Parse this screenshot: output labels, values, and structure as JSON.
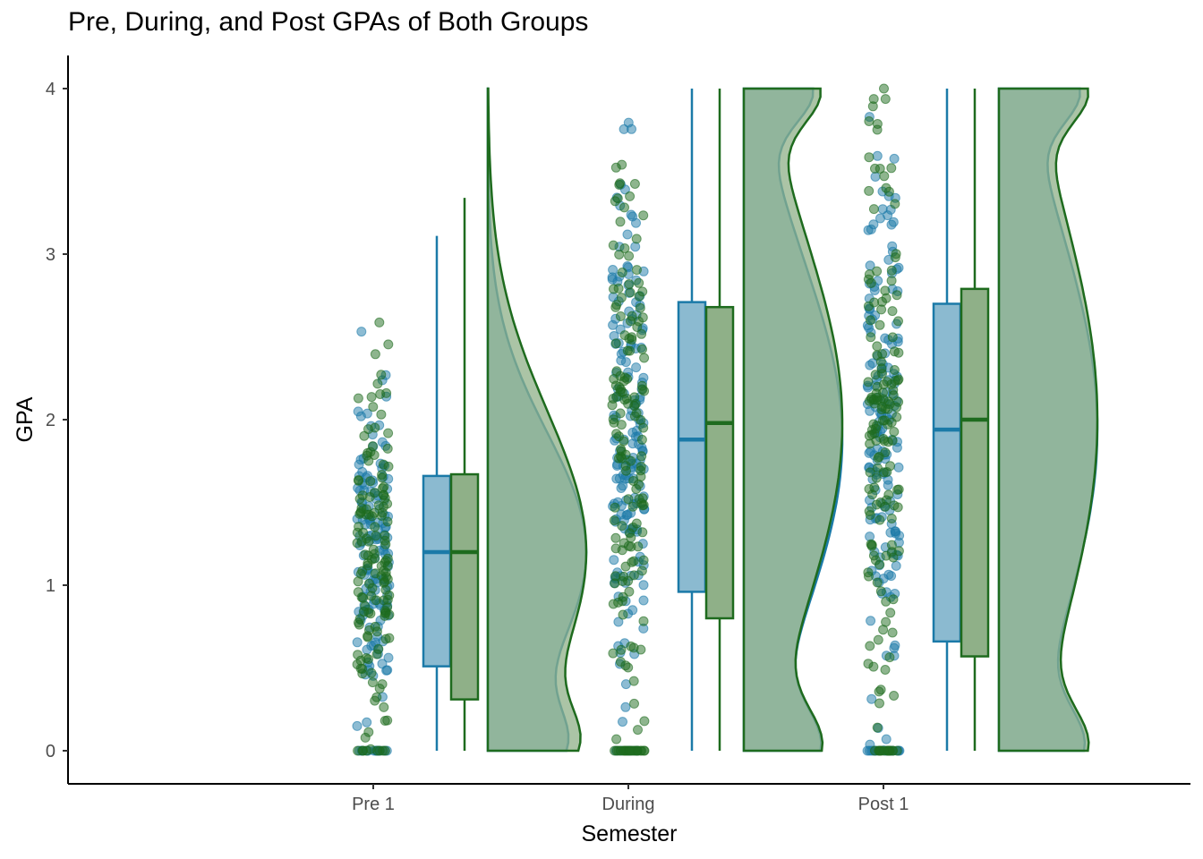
{
  "chart_data": {
    "type": "raincloud",
    "title": "Pre, During, and Post GPAs of Both Groups",
    "xlabel": "Semester",
    "ylabel": "GPA",
    "categories": [
      "Pre 1",
      "During",
      "Post 1"
    ],
    "ylim": [
      -0.2,
      4.2
    ],
    "yticks": [
      0,
      1,
      2,
      3,
      4
    ],
    "grid": false,
    "legend": "none",
    "series": [
      {
        "group": "blue",
        "color": "#1b7aa8",
        "fill": "#8bbad0",
        "boxes": [
          {
            "category": "Pre 1",
            "min": 0,
            "q1": 0.51,
            "median": 1.2,
            "q3": 1.66,
            "max": 3.11
          },
          {
            "category": "During",
            "min": 0,
            "q1": 0.96,
            "median": 1.88,
            "q3": 2.71,
            "max": 4.0
          },
          {
            "category": "Post 1",
            "min": 0,
            "q1": 0.66,
            "median": 1.94,
            "q3": 2.7,
            "max": 4.0
          }
        ]
      },
      {
        "group": "green",
        "color": "#1e6b1e",
        "fill": "#8fb088",
        "boxes": [
          {
            "category": "Pre 1",
            "min": 0,
            "q1": 0.31,
            "median": 1.2,
            "q3": 1.67,
            "max": 3.34
          },
          {
            "category": "During",
            "min": 0,
            "q1": 0.8,
            "median": 1.98,
            "q3": 2.68,
            "max": 4.0
          },
          {
            "category": "Post 1",
            "min": 0,
            "q1": 0.57,
            "median": 2.0,
            "q3": 2.79,
            "max": 4.0
          }
        ]
      }
    ]
  }
}
